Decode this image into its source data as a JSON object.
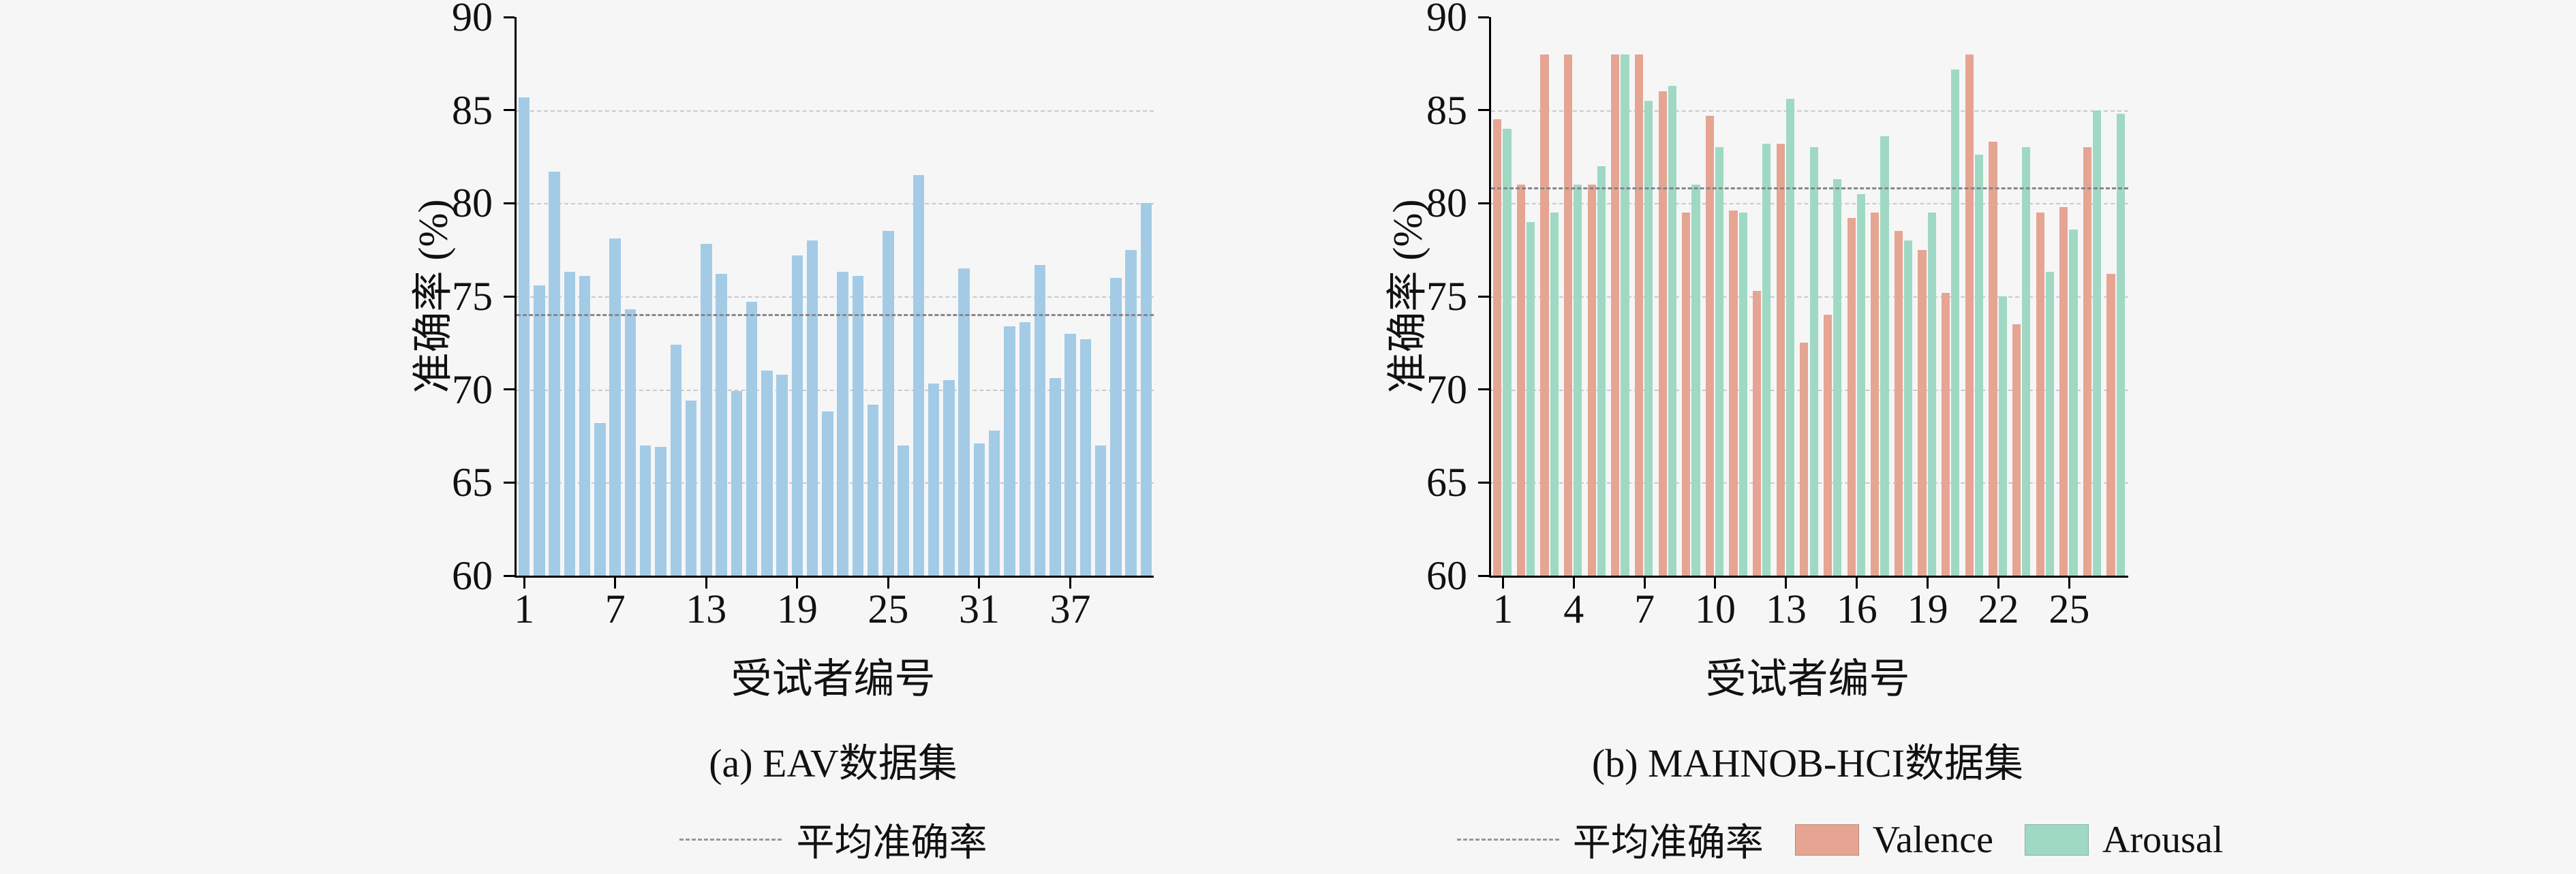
{
  "figure": {
    "background": "#f6f6f7",
    "axis_color": "#000000",
    "grid_color": "#c9c9cf",
    "mean_line_color": "#86868c"
  },
  "legend": {
    "mean_label": "平均准确率",
    "valence_label": "Valence",
    "arousal_label": "Arousal"
  },
  "chart_data": [
    {
      "type": "bar",
      "title": "(a) EAV数据集",
      "xlabel": "受试者编号",
      "ylabel": "准确率 (%)",
      "ylim": [
        60,
        90
      ],
      "yticks": [
        60,
        65,
        70,
        75,
        80,
        85,
        90
      ],
      "xticks": [
        1,
        7,
        13,
        19,
        25,
        31,
        37
      ],
      "grid": "dashed-horizontal",
      "legend_position": "bottom",
      "bar_color": "#a3cbe5",
      "mean": 74.0,
      "mean_label": "平均准确率",
      "x": [
        1,
        2,
        3,
        4,
        5,
        6,
        7,
        8,
        9,
        10,
        11,
        12,
        13,
        14,
        15,
        16,
        17,
        18,
        19,
        20,
        21,
        22,
        23,
        24,
        25,
        26,
        27,
        28,
        29,
        30,
        31,
        32,
        33,
        34,
        35,
        36,
        37,
        38,
        39,
        40,
        41,
        42
      ],
      "values": [
        85.7,
        75.6,
        81.7,
        76.3,
        76.1,
        68.2,
        78.1,
        74.3,
        67.0,
        66.9,
        72.4,
        69.4,
        77.8,
        76.2,
        69.9,
        74.7,
        71.0,
        70.8,
        77.2,
        78.0,
        68.8,
        76.3,
        76.1,
        69.2,
        78.5,
        67.0,
        81.5,
        70.3,
        70.5,
        76.5,
        67.1,
        67.8,
        73.4,
        73.6,
        76.7,
        70.6,
        73.0,
        72.7,
        67.0,
        76.0,
        77.5,
        80.0
      ]
    },
    {
      "type": "bar",
      "title": "(b) MAHNOB-HCI数据集",
      "xlabel": "受试者编号",
      "ylabel": "准确率 (%)",
      "ylim": [
        60,
        90
      ],
      "yticks": [
        60,
        65,
        70,
        75,
        80,
        85,
        90
      ],
      "xticks": [
        1,
        4,
        7,
        10,
        13,
        16,
        19,
        22,
        25
      ],
      "grid": "dashed-horizontal",
      "legend_position": "bottom",
      "mean": 80.8,
      "mean_label": "平均准确率",
      "categories": [
        1,
        2,
        3,
        4,
        5,
        6,
        7,
        8,
        9,
        10,
        11,
        12,
        13,
        14,
        15,
        16,
        17,
        18,
        19,
        20,
        21,
        22,
        23,
        24,
        25,
        26,
        27
      ],
      "series": [
        {
          "name": "Valence",
          "color": "#e5a592",
          "values": [
            84.5,
            81.0,
            88.0,
            88.0,
            81.0,
            88.0,
            88.0,
            86.0,
            79.5,
            84.7,
            79.6,
            75.3,
            83.2,
            72.5,
            74.0,
            79.2,
            79.5,
            78.5,
            77.5,
            75.2,
            88.0,
            83.3,
            73.5,
            79.5,
            79.8,
            83.0,
            76.2
          ]
        },
        {
          "name": "Arousal",
          "color": "#9fd9c4",
          "values": [
            84.0,
            79.0,
            79.5,
            81.0,
            82.0,
            88.0,
            85.5,
            86.3,
            81.0,
            83.0,
            79.5,
            83.2,
            85.6,
            83.0,
            81.3,
            80.5,
            83.6,
            78.0,
            79.5,
            87.2,
            82.6,
            75.0,
            83.0,
            76.3,
            78.6,
            85.0,
            84.8
          ]
        }
      ]
    }
  ]
}
